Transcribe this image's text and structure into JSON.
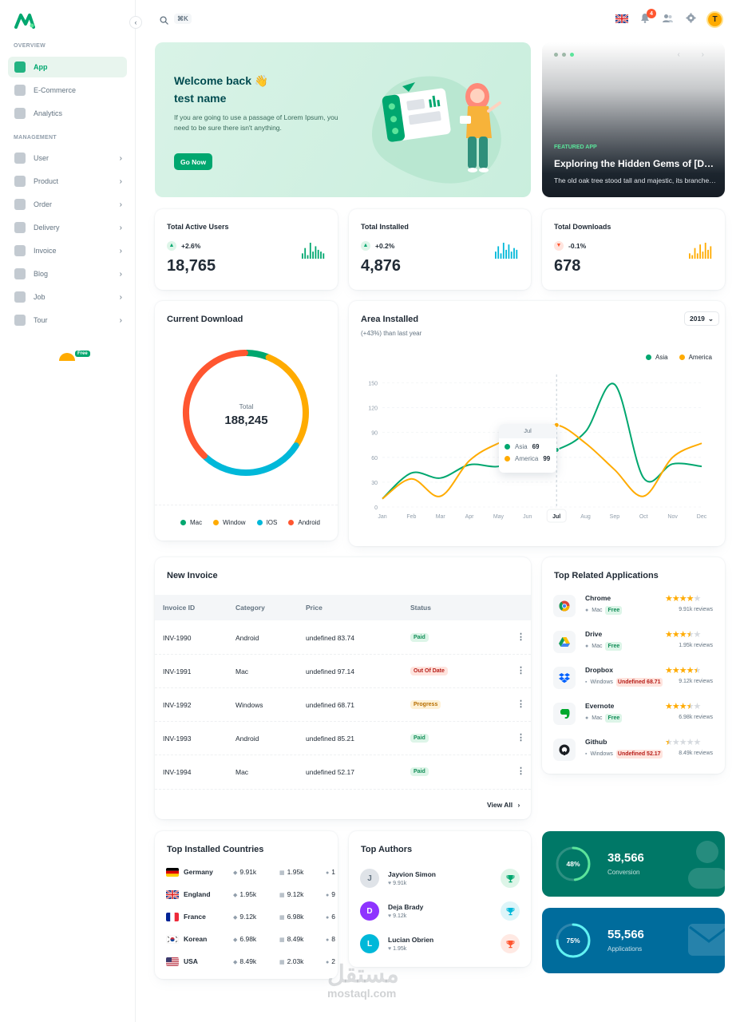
{
  "sidebar": {
    "overview_label": "OVERVIEW",
    "management_label": "MANAGEMENT",
    "overview_items": [
      {
        "label": "App",
        "icon": "app-icon"
      },
      {
        "label": "E-Commerce",
        "icon": "ecommerce-icon"
      },
      {
        "label": "Analytics",
        "icon": "analytics-icon"
      }
    ],
    "management_items": [
      {
        "label": "User",
        "icon": "user-icon"
      },
      {
        "label": "Product",
        "icon": "product-icon"
      },
      {
        "label": "Order",
        "icon": "order-icon"
      },
      {
        "label": "Delivery",
        "icon": "delivery-icon"
      },
      {
        "label": "Invoice",
        "icon": "invoice-icon"
      },
      {
        "label": "Blog",
        "icon": "blog-icon"
      },
      {
        "label": "Job",
        "icon": "job-icon"
      },
      {
        "label": "Tour",
        "icon": "tour-icon"
      }
    ],
    "free_chip": "Free"
  },
  "header": {
    "shortcut": "⌘K",
    "notification_count": "4",
    "avatar_initial": "T"
  },
  "welcome": {
    "title_line1": "Welcome back 👋",
    "title_line2": "test name",
    "description": "If you are going to use a passage of Lorem Ipsum, you need to be sure there isn't anything.",
    "button": "Go Now"
  },
  "featured": {
    "tag": "FEATURED APP",
    "title": "Exploring the Hidden Gems of [Destination]",
    "description": "The old oak tree stood tall and majestic, its branches swaying in the breeze."
  },
  "stats": [
    {
      "title": "Total Active Users",
      "change": "+2.6%",
      "trend": "up",
      "value": "18,765",
      "color": "#00A76F",
      "bars": [
        3,
        6,
        2,
        9,
        4,
        7,
        5,
        4,
        3
      ]
    },
    {
      "title": "Total Installed",
      "change": "+0.2%",
      "trend": "up",
      "value": "4,876",
      "color": "#00B8D9",
      "bars": [
        4,
        7,
        3,
        9,
        5,
        8,
        4,
        6,
        5
      ]
    },
    {
      "title": "Total Downloads",
      "change": "-0.1%",
      "trend": "down",
      "value": "678",
      "color": "#FFAB00",
      "bars": [
        3,
        2,
        6,
        3,
        8,
        4,
        9,
        5,
        7
      ]
    }
  ],
  "current_download": {
    "title": "Current Download",
    "total_label": "Total",
    "total_value": "188,245",
    "legend": [
      {
        "name": "Mac",
        "color": "#00A76F"
      },
      {
        "name": "Window",
        "color": "#FFAB00"
      },
      {
        "name": "IOS",
        "color": "#00B8D9"
      },
      {
        "name": "Android",
        "color": "#FF5630"
      }
    ]
  },
  "area_installed": {
    "title": "Area Installed",
    "subtitle": "(+43%) than last year",
    "year": "2019",
    "tooltip": {
      "month": "Jul",
      "rows": [
        {
          "name": "Asia",
          "value": "69",
          "color": "#00A76F"
        },
        {
          "name": "America",
          "value": "99",
          "color": "#FFAB00"
        }
      ]
    }
  },
  "chart_data": [
    {
      "type": "pie",
      "title": "Current Download",
      "categories": [
        "Mac",
        "Window",
        "IOS",
        "Android"
      ],
      "values": [
        6,
        28,
        28,
        38
      ],
      "colors": [
        "#00A76F",
        "#FFAB00",
        "#00B8D9",
        "#FF5630"
      ]
    },
    {
      "type": "line",
      "title": "Area Installed",
      "categories": [
        "Jan",
        "Feb",
        "Mar",
        "Apr",
        "May",
        "Jun",
        "Jul",
        "Aug",
        "Sep",
        "Oct",
        "Nov",
        "Dec"
      ],
      "ylim": [
        0,
        160
      ],
      "yticks": [
        0,
        30,
        60,
        90,
        120,
        150
      ],
      "series": [
        {
          "name": "Asia",
          "color": "#00A76F",
          "values": [
            10,
            41,
            35,
            51,
            49,
            62,
            69,
            91,
            148,
            35,
            52,
            49
          ]
        },
        {
          "name": "America",
          "color": "#FFAB00",
          "values": [
            10,
            34,
            13,
            56,
            77,
            88,
            99,
            77,
            45,
            13,
            60,
            77
          ]
        }
      ]
    }
  ],
  "invoice": {
    "title": "New Invoice",
    "columns": [
      "Invoice ID",
      "Category",
      "Price",
      "Status"
    ],
    "rows": [
      {
        "id": "INV-1990",
        "category": "Android",
        "price": "undefined 83.74",
        "status": "Paid",
        "kind": "paid"
      },
      {
        "id": "INV-1991",
        "category": "Mac",
        "price": "undefined 97.14",
        "status": "Out Of Date",
        "kind": "out"
      },
      {
        "id": "INV-1992",
        "category": "Windows",
        "price": "undefined 68.71",
        "status": "Progress",
        "kind": "prog"
      },
      {
        "id": "INV-1993",
        "category": "Android",
        "price": "undefined 85.21",
        "status": "Paid",
        "kind": "paid"
      },
      {
        "id": "INV-1994",
        "category": "Mac",
        "price": "undefined 52.17",
        "status": "Paid",
        "kind": "paid"
      }
    ],
    "view_all": "View All"
  },
  "apps": {
    "title": "Top Related Applications",
    "items": [
      {
        "name": "Chrome",
        "os": "Mac",
        "price": "Free",
        "free": true,
        "rating": 4,
        "reviews": "9.91k reviews",
        "icon": "chrome-icon"
      },
      {
        "name": "Drive",
        "os": "Mac",
        "price": "Free",
        "free": true,
        "rating": 3.5,
        "reviews": "1.95k reviews",
        "icon": "drive-icon"
      },
      {
        "name": "Dropbox",
        "os": "Windows",
        "price": "Undefined 68.71",
        "free": false,
        "rating": 4.5,
        "reviews": "9.12k reviews",
        "icon": "dropbox-icon"
      },
      {
        "name": "Evernote",
        "os": "Mac",
        "price": "Free",
        "free": true,
        "rating": 3.5,
        "reviews": "6.98k reviews",
        "icon": "evernote-icon"
      },
      {
        "name": "Github",
        "os": "Windows",
        "price": "Undefined 52.17",
        "free": false,
        "rating": 0.5,
        "reviews": "8.49k reviews",
        "icon": "github-icon"
      }
    ]
  },
  "countries": {
    "title": "Top Installed Countries",
    "rows": [
      {
        "name": "Germany",
        "flag": "de",
        "a": "9.91k",
        "b": "1.95k",
        "c": "1"
      },
      {
        "name": "England",
        "flag": "gb",
        "a": "1.95k",
        "b": "9.12k",
        "c": "9"
      },
      {
        "name": "France",
        "flag": "fr",
        "a": "9.12k",
        "b": "6.98k",
        "c": "6"
      },
      {
        "name": "Korean",
        "flag": "kr",
        "a": "6.98k",
        "b": "8.49k",
        "c": "8"
      },
      {
        "name": "USA",
        "flag": "us",
        "a": "8.49k",
        "b": "2.03k",
        "c": "2"
      }
    ]
  },
  "authors": {
    "title": "Top Authors",
    "items": [
      {
        "name": "Jayvion Simon",
        "likes": "9.91k",
        "initial": "J",
        "avatar_color": "#DFE3E8",
        "initial_color": "#637381",
        "trophy_color": "#00A76F",
        "trophy_bg": "#DDF5E8"
      },
      {
        "name": "Deja Brady",
        "likes": "9.12k",
        "initial": "D",
        "avatar_color": "#8E33FF",
        "initial_color": "#ffffff",
        "trophy_color": "#00B8D9",
        "trophy_bg": "#DDF5F9"
      },
      {
        "name": "Lucian Obrien",
        "likes": "1.95k",
        "initial": "L",
        "avatar_color": "#00B8D9",
        "initial_color": "#ffffff",
        "trophy_color": "#FF5630",
        "trophy_bg": "#FFE9E3"
      }
    ]
  },
  "widgets": [
    {
      "percent": "48%",
      "value": "38,566",
      "label": "Conversion",
      "fraction": 0.48,
      "bg": "#007867",
      "ring": "#5BE49B"
    },
    {
      "percent": "75%",
      "value": "55,566",
      "label": "Applications",
      "fraction": 0.75,
      "bg": "#006C9C",
      "ring": "#61F3F3"
    }
  ],
  "watermark": {
    "arabic": "مستقل",
    "latin": "mostaql.com"
  }
}
